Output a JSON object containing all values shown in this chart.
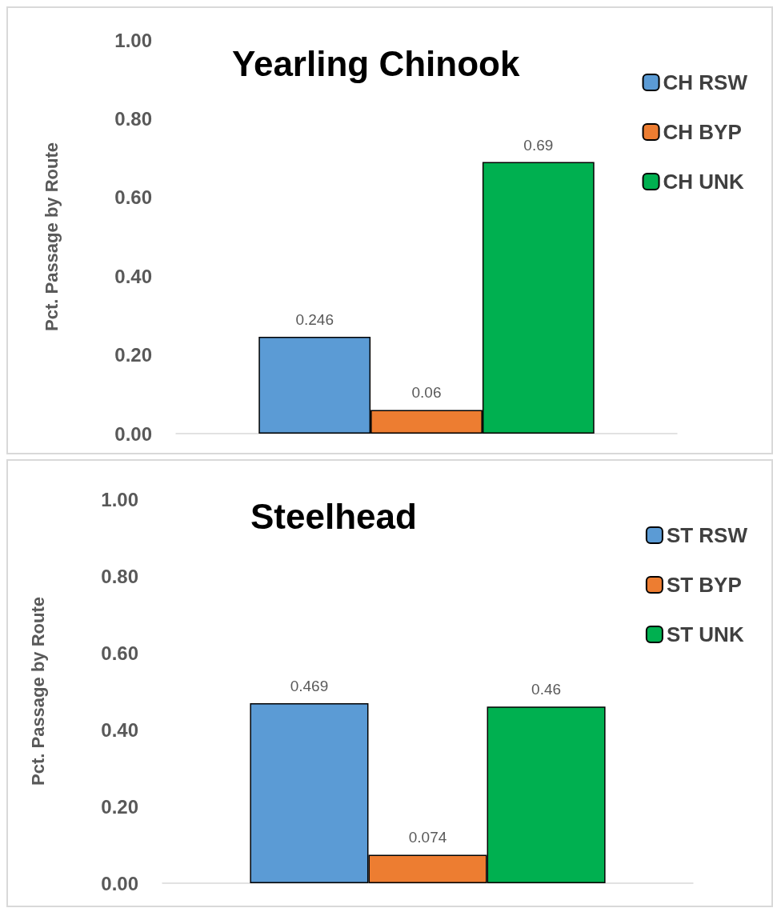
{
  "chart_data": [
    {
      "type": "bar",
      "title": "Yearling Chinook",
      "ylabel": "Pct. Passage by Route",
      "categories": [
        null
      ],
      "series": [
        {
          "name": "CH RSW",
          "color": "#5b9bd5",
          "values": [
            0.246
          ]
        },
        {
          "name": "CH BYP",
          "color": "#ed7d31",
          "values": [
            0.06
          ]
        },
        {
          "name": "CH UNK",
          "color": "#00b050",
          "values": [
            0.69
          ]
        }
      ],
      "ylim": [
        0,
        1
      ],
      "yticks": [
        {
          "value": 0,
          "label": "0.00"
        },
        {
          "value": 0.2,
          "label": "0.20"
        },
        {
          "value": 0.4,
          "label": "0.40"
        },
        {
          "value": 0.6,
          "label": "0.60"
        },
        {
          "value": 0.8,
          "label": "0.80"
        },
        {
          "value": 1,
          "label": "1.00"
        }
      ],
      "grid": false,
      "legend": "top right",
      "data_labels": true
    },
    {
      "type": "bar",
      "title": "Steelhead",
      "ylabel": "Pct. Passage by Route",
      "categories": [
        null
      ],
      "series": [
        {
          "name": "ST RSW",
          "color": "#5b9bd5",
          "values": [
            0.469
          ]
        },
        {
          "name": "ST BYP",
          "color": "#ed7d31",
          "values": [
            0.074
          ]
        },
        {
          "name": "ST UNK",
          "color": "#00b050",
          "values": [
            0.46
          ]
        }
      ],
      "ylim": [
        0,
        1
      ],
      "yticks": [
        {
          "value": 0,
          "label": "0.00"
        },
        {
          "value": 0.2,
          "label": "0.20"
        },
        {
          "value": 0.4,
          "label": "0.40"
        },
        {
          "value": 0.6,
          "label": "0.60"
        },
        {
          "value": 0.8,
          "label": "0.80"
        },
        {
          "value": 1,
          "label": "1.00"
        }
      ],
      "grid": false,
      "legend": "top right",
      "data_labels": true
    }
  ]
}
